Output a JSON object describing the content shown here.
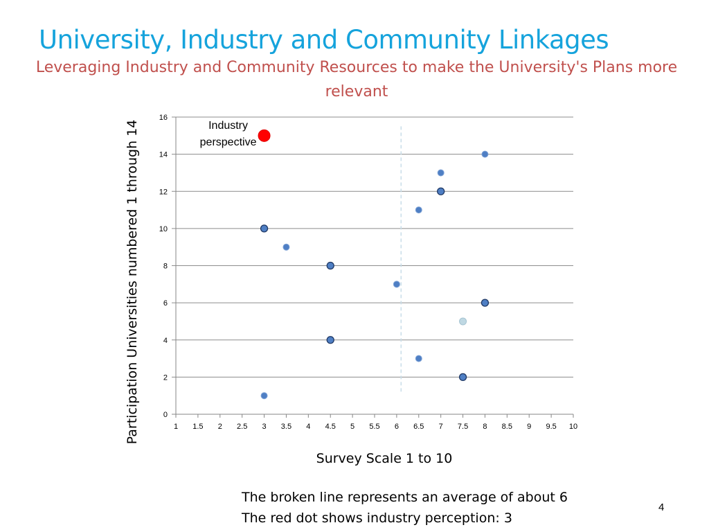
{
  "slide": {
    "title": "University, Industry and Community Linkages",
    "subtitle": "Leveraging Industry and Community Resources to make the University's Plans more relevant",
    "notes": [
      "The broken line represents an average of about 6",
      "The red dot shows industry perception: 3"
    ],
    "page_number": "4"
  },
  "chart_data": {
    "type": "scatter",
    "title": "",
    "xlabel": "Survey Scale 1 to 10",
    "ylabel": "Participation Universities numbered 1 through 14",
    "xlim": [
      1,
      10
    ],
    "ylim": [
      0,
      16
    ],
    "x_ticks": [
      1,
      1.5,
      2,
      2.5,
      3,
      3.5,
      4,
      4.5,
      5,
      5.5,
      6,
      6.5,
      7,
      7.5,
      8,
      8.5,
      9,
      9.5,
      10
    ],
    "y_ticks": [
      0,
      2,
      4,
      6,
      8,
      10,
      12,
      14,
      16
    ],
    "grid": "horizontal",
    "average_line": {
      "x": 6.1,
      "y_from": 1.2,
      "y_to": 15.5,
      "style": "dashed",
      "color": "#C8DDE8"
    },
    "series": [
      {
        "name": "Universities",
        "color": "#4F7FC4",
        "points": [
          {
            "x": 3,
            "y": 1,
            "style": "filled"
          },
          {
            "x": 7.5,
            "y": 2,
            "style": "outlined"
          },
          {
            "x": 6.5,
            "y": 3,
            "style": "filled"
          },
          {
            "x": 4.5,
            "y": 4,
            "style": "outlined"
          },
          {
            "x": 7.5,
            "y": 5,
            "style": "light"
          },
          {
            "x": 8,
            "y": 6,
            "style": "outlined"
          },
          {
            "x": 6,
            "y": 7,
            "style": "filled"
          },
          {
            "x": 4.5,
            "y": 8,
            "style": "outlined"
          },
          {
            "x": 3.5,
            "y": 9,
            "style": "filled"
          },
          {
            "x": 3,
            "y": 10,
            "style": "outlined"
          },
          {
            "x": 6.5,
            "y": 11,
            "style": "filled"
          },
          {
            "x": 7,
            "y": 12,
            "style": "outlined"
          },
          {
            "x": 7,
            "y": 13,
            "style": "filled"
          },
          {
            "x": 8,
            "y": 14,
            "style": "filled"
          }
        ]
      },
      {
        "name": "Industry perspective",
        "color": "#FF0000",
        "points": [
          {
            "x": 3,
            "y": 15,
            "style": "large"
          }
        ]
      }
    ],
    "annotations": [
      {
        "text_lines": [
          "Industry",
          "perspective"
        ],
        "anchor_x": 3,
        "anchor_y": 15
      }
    ]
  }
}
